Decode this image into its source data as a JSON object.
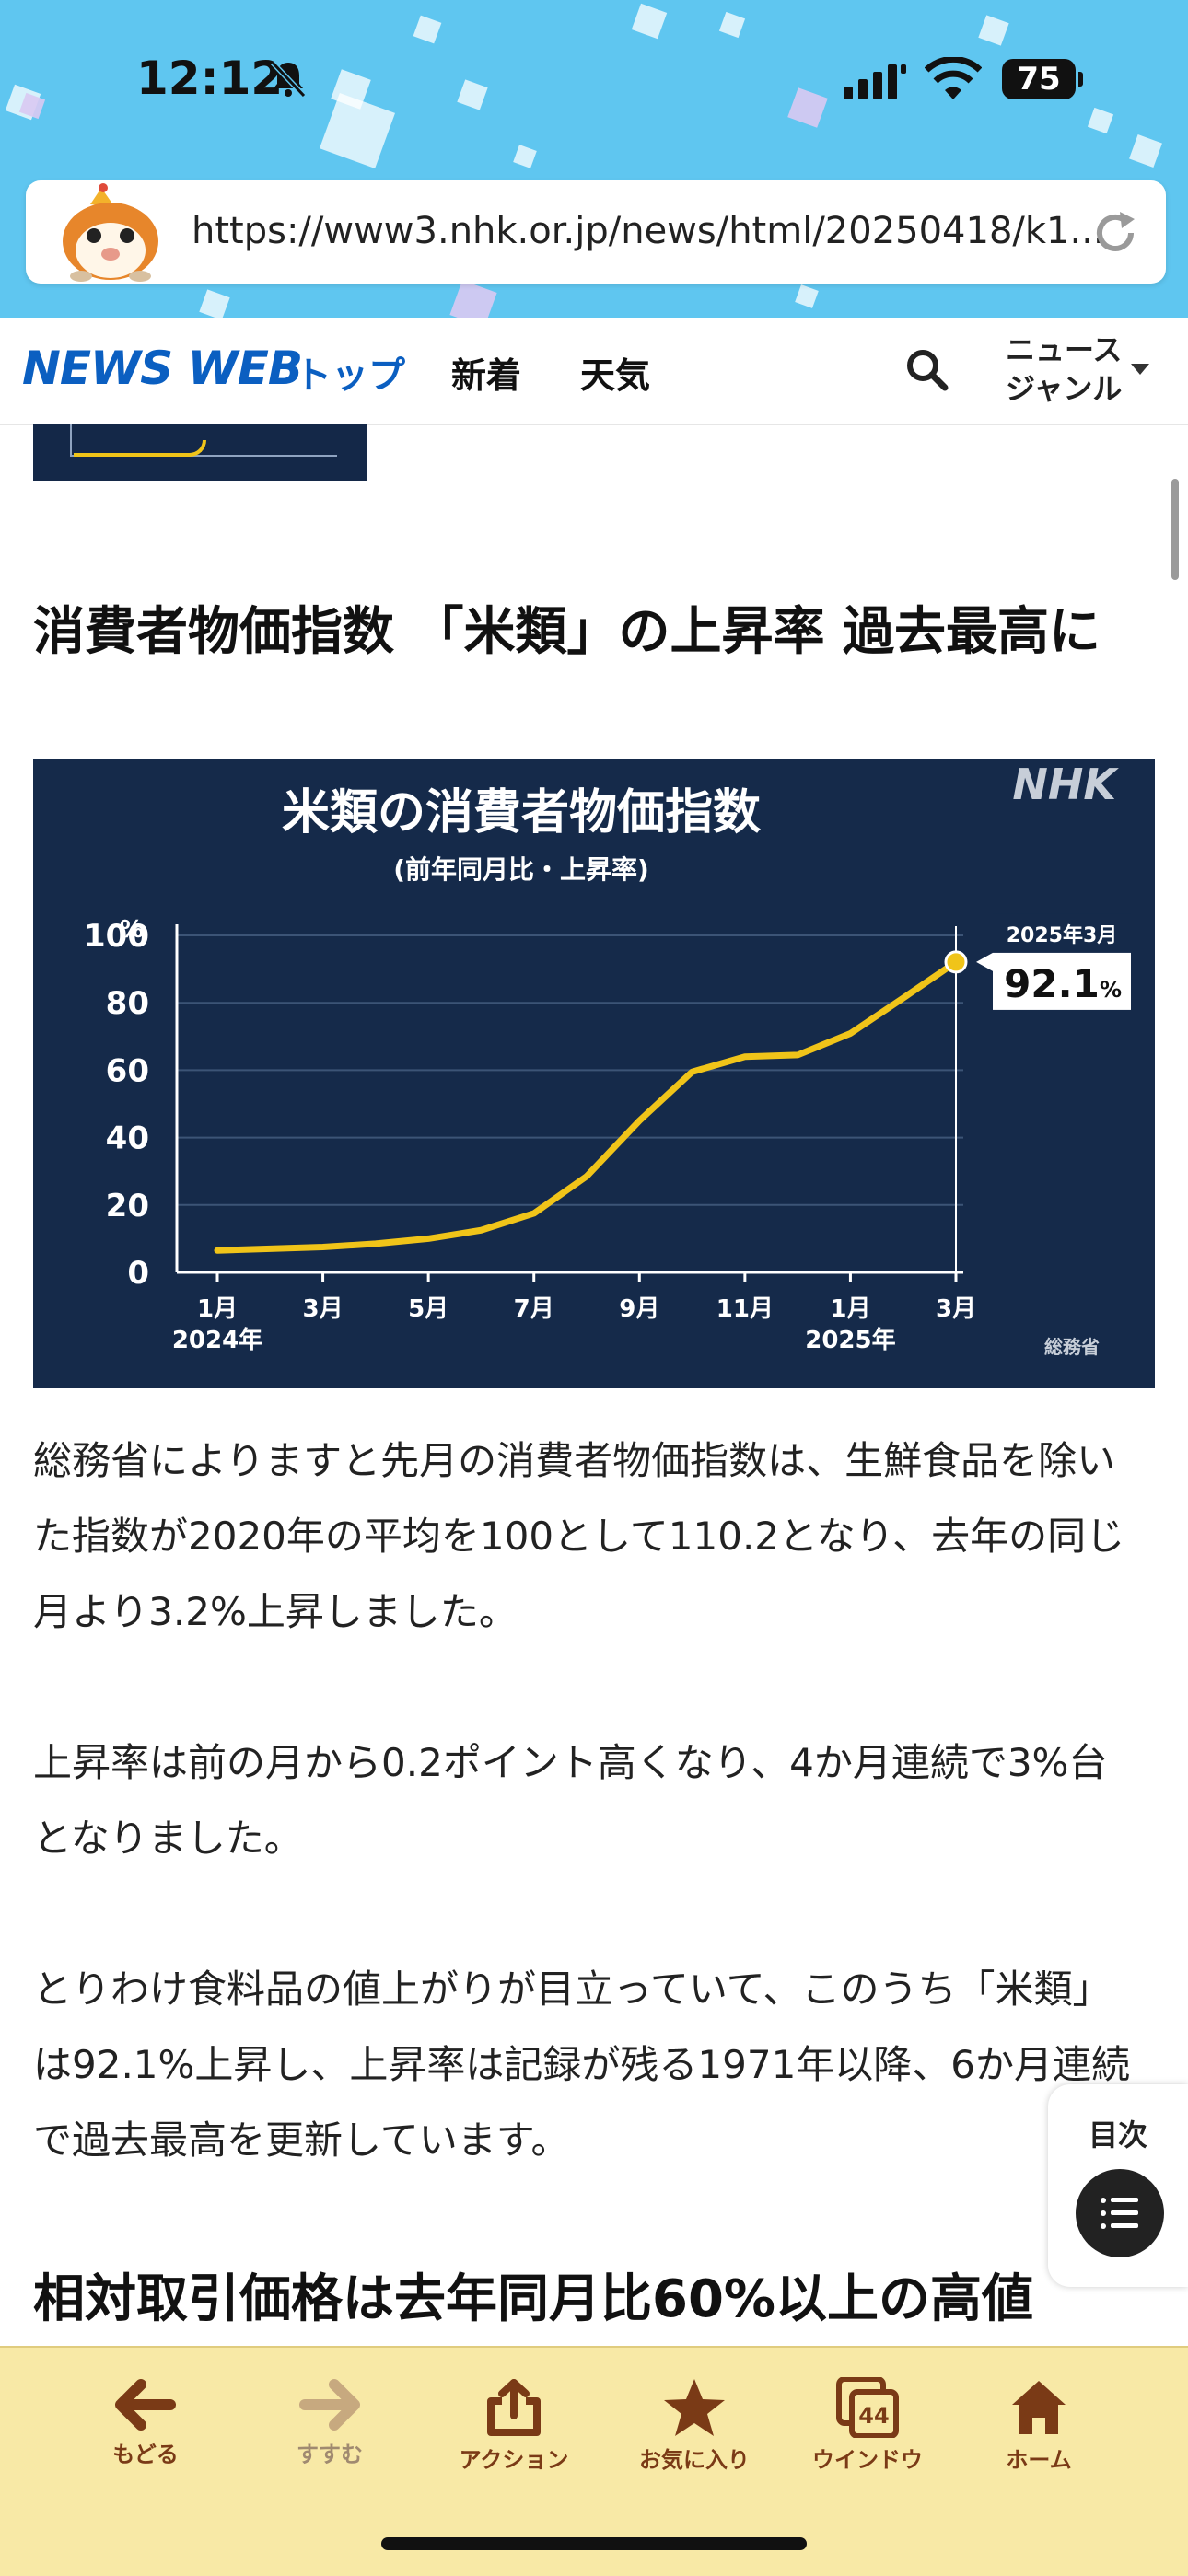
{
  "status_bar": {
    "time": "12:12",
    "battery": "75"
  },
  "browser": {
    "url": "https://www3.nhk.or.jp/news/html/20250418/k1..."
  },
  "site_nav": {
    "logo": "NEWS WEB",
    "top": "トップ",
    "new": "新着",
    "weather": "天気",
    "genre_line1": "ニュース",
    "genre_line2": "ジャンル"
  },
  "article": {
    "headline": "消費者物価指数 「米類」の上昇率 過去最高に",
    "paragraphs": [
      "総務省によりますと先月の消費者物価指数は、生鮮食品を除いた指数が2020年の平均を100として110.2となり、去年の同じ月より3.2%上昇しました。",
      "上昇率は前の月から0.2ポイント高くなり、4か月連続で3%台となりました。",
      "とりわけ食料品の値上がりが目立っていて、このうち「米類」は92.1%上昇し、上昇率は記録が残る1971年以降、6か月連続で過去最高を更新しています。"
    ],
    "subheading": "相対取引価格は去年同月比60%以上の高値"
  },
  "toc": {
    "label": "目次"
  },
  "toolbar": {
    "back": "もどる",
    "forward": "すすむ",
    "action": "アクション",
    "favorites": "お気に入り",
    "windows": "ウインドウ",
    "window_count": "44",
    "home": "ホーム"
  },
  "colors": {
    "brand_blue": "#0b5fc1",
    "chart_bg": "#152a4a",
    "line_yellow": "#f0c419",
    "toolbar_bg": "#f8e9a6"
  },
  "chart_data": {
    "type": "line",
    "title": "米類の消費者物価指数",
    "subtitle": "(前年同月比・上昇率)",
    "brand": "NHK",
    "source": "総務省",
    "ylabel": "%",
    "ylim": [
      0,
      100
    ],
    "yticks": [
      "0",
      "20",
      "40",
      "60",
      "80",
      "100"
    ],
    "xtick_labels": [
      "1月",
      "3月",
      "5月",
      "7月",
      "9月",
      "11月",
      "1月",
      "3月"
    ],
    "year_labels": [
      {
        "text": "2024年",
        "at": "1月"
      },
      {
        "text": "2025年",
        "at": "1月"
      }
    ],
    "x": [
      "2024-01",
      "2024-02",
      "2024-03",
      "2024-04",
      "2024-05",
      "2024-06",
      "2024-07",
      "2024-08",
      "2024-09",
      "2024-10",
      "2024-11",
      "2024-12",
      "2025-01",
      "2025-02",
      "2025-03"
    ],
    "values": [
      6.5,
      7.0,
      7.5,
      8.5,
      10.0,
      12.5,
      17.5,
      28.5,
      45.0,
      59.5,
      64.0,
      64.5,
      70.9,
      81.4,
      92.1
    ],
    "callout": {
      "label": "2025年3月",
      "value": "92.1",
      "unit": "%"
    },
    "grid": true
  }
}
